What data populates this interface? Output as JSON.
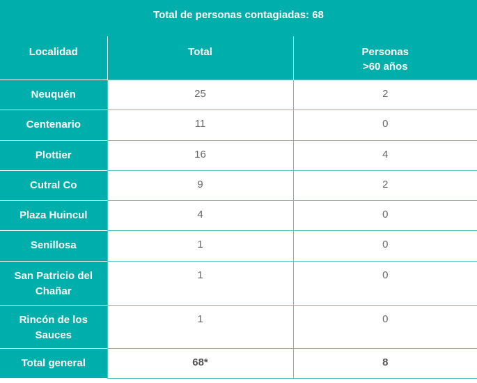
{
  "title": "Total de personas contagiadas: 68",
  "headers": [
    "Localidad",
    "Total",
    "Personas\n>60 años"
  ],
  "header_lines": {
    "c3a": "Personas",
    "c3b": ">60 años"
  },
  "rows": [
    {
      "localidad": "Neuquén",
      "total": "25",
      "mayores": "2"
    },
    {
      "localidad": "Centenario",
      "total": "11",
      "mayores": "0"
    },
    {
      "localidad": "Plottier",
      "total": "16",
      "mayores": "4"
    },
    {
      "localidad": "Cutral Co",
      "total": "9",
      "mayores": "2"
    },
    {
      "localidad": "Plaza Huincul",
      "total": "4",
      "mayores": "0"
    },
    {
      "localidad": "Senillosa",
      "total": "1",
      "mayores": "0"
    },
    {
      "localidad": "San Patricio del Chañar",
      "total": "1",
      "mayores": "0"
    },
    {
      "localidad": "Rincón de los Sauces",
      "total": "1",
      "mayores": "0"
    }
  ],
  "footer": {
    "localidad": "Total general",
    "total": "68*",
    "mayores": "8"
  },
  "colors": {
    "accent": "#00aeab"
  }
}
